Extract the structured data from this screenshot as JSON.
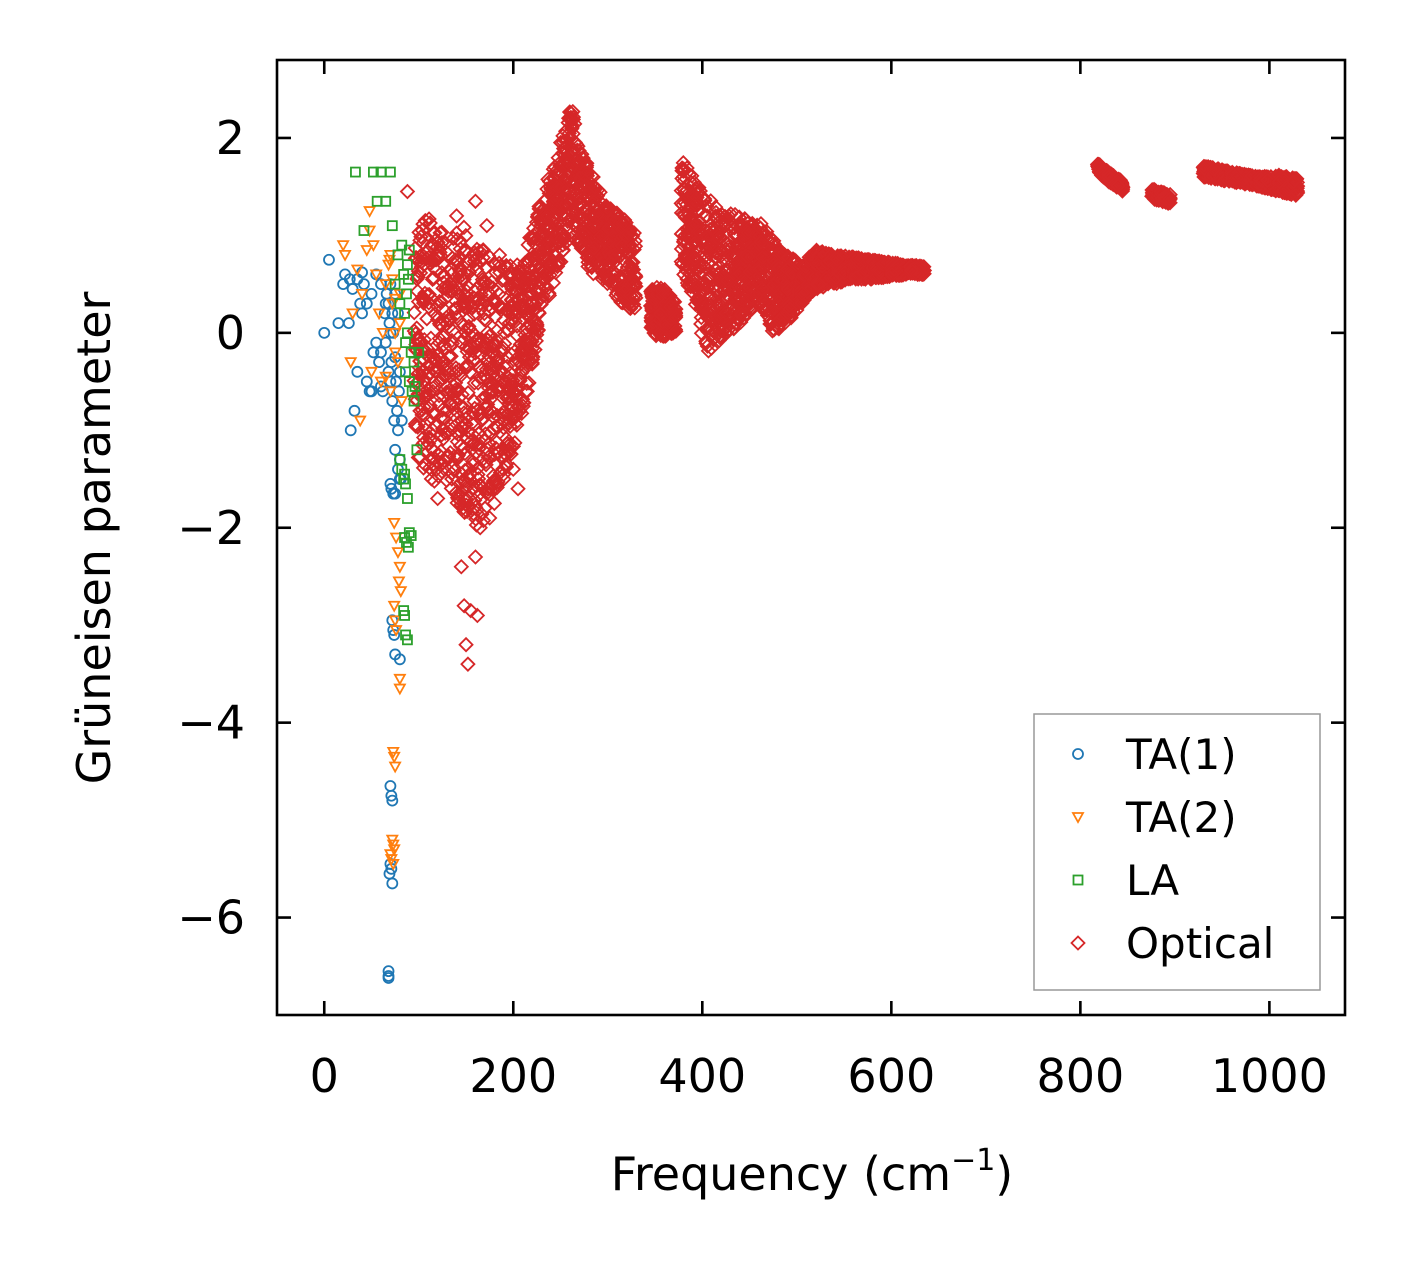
{
  "chart_data": {
    "type": "scatter",
    "title": "",
    "xlabel": "Frequency (cm",
    "xlabel_sup": "−1",
    "xlabel_close": ")",
    "ylabel": "Grüneisen parameter",
    "xlim": [
      -50,
      1080
    ],
    "ylim": [
      -7,
      2.8
    ],
    "xticks": [
      0,
      200,
      400,
      600,
      800,
      1000
    ],
    "xtick_labels": [
      "0",
      "200",
      "400",
      "600",
      "800",
      "1000"
    ],
    "yticks": [
      2,
      0,
      -2,
      -4,
      -6
    ],
    "ytick_labels": [
      "2",
      "0",
      "−2",
      "−4",
      "−6"
    ],
    "grid": false,
    "legend_position": "lower-right",
    "series": [
      {
        "name": "TA(1)",
        "marker": "circle",
        "color": "#1f77b4",
        "x": [
          0,
          5,
          15,
          20,
          22,
          26,
          28,
          32,
          35,
          38,
          40,
          42,
          45,
          48,
          50,
          52,
          55,
          58,
          60,
          62,
          64,
          65,
          66,
          68,
          68,
          69,
          70,
          70,
          71,
          72,
          72,
          73,
          74,
          75,
          75,
          76,
          77,
          78,
          78,
          79,
          80,
          80,
          81,
          82,
          70,
          71,
          73,
          75,
          78,
          80,
          72,
          73,
          74,
          75,
          80,
          70,
          71,
          72,
          70,
          71,
          72,
          69,
          68,
          68,
          68,
          27,
          30,
          40,
          45,
          55,
          60,
          65,
          70,
          75,
          60,
          50,
          35
        ],
        "y": [
          0.0,
          0.75,
          0.1,
          0.5,
          0.6,
          0.1,
          -1.0,
          -0.8,
          -0.4,
          0.3,
          0.2,
          0.5,
          -0.5,
          -0.6,
          0.4,
          -0.2,
          0.6,
          -0.3,
          0.5,
          -0.6,
          0.2,
          -0.1,
          0.4,
          0.3,
          -0.4,
          0.1,
          -0.5,
          0.5,
          -0.3,
          0.2,
          -0.7,
          0.0,
          -0.9,
          0.4,
          -1.2,
          -0.5,
          -0.8,
          -1.0,
          0.2,
          -0.6,
          -1.3,
          -0.4,
          -1.5,
          -0.9,
          -1.55,
          -1.6,
          -1.65,
          -1.65,
          -1.4,
          -1.5,
          -2.95,
          -3.05,
          -3.1,
          -3.3,
          -3.35,
          -4.65,
          -4.75,
          -4.8,
          -5.45,
          -5.5,
          -5.65,
          -5.55,
          -6.55,
          -6.6,
          -6.62,
          0.55,
          0.45,
          0.62,
          0.3,
          -0.1,
          -0.2,
          0.3,
          0.0,
          -0.25,
          -0.55,
          -0.6,
          0.55
        ]
      },
      {
        "name": "TA(2)",
        "marker": "triangle-down",
        "color": "#ff7f0e",
        "x": [
          20,
          22,
          28,
          30,
          35,
          40,
          45,
          48,
          50,
          55,
          58,
          60,
          62,
          65,
          68,
          70,
          72,
          75,
          78,
          80,
          82,
          74,
          76,
          78,
          80,
          79,
          81,
          74,
          75,
          76,
          80,
          80,
          73,
          74,
          75,
          72,
          73,
          74,
          70,
          71,
          73,
          48,
          52,
          38,
          65,
          70,
          75,
          80
        ],
        "y": [
          0.9,
          0.8,
          -0.3,
          0.2,
          0.65,
          0.4,
          0.85,
          1.05,
          -0.4,
          0.6,
          0.2,
          -0.5,
          0.0,
          0.5,
          0.7,
          -0.6,
          0.3,
          0.0,
          -0.3,
          0.4,
          -0.7,
          -1.95,
          -2.1,
          -2.25,
          -2.4,
          -2.55,
          -2.65,
          -2.8,
          -2.95,
          -3.05,
          -3.55,
          -3.65,
          -4.3,
          -4.35,
          -4.45,
          -5.2,
          -5.25,
          -5.3,
          -5.35,
          -5.4,
          -5.45,
          1.25,
          0.9,
          -0.9,
          -0.45,
          0.8,
          -0.2,
          0.1
        ],
        "extra_x": [
          69,
          72,
          75
        ],
        "extra_y": [
          0.75,
          0.55,
          0.35
        ]
      },
      {
        "name": "LA",
        "marker": "square",
        "color": "#2ca02c",
        "x": [
          33,
          42,
          52,
          56,
          60,
          65,
          70,
          72,
          75,
          78,
          80,
          82,
          84,
          85,
          86,
          88,
          90,
          92,
          93,
          95,
          95,
          96,
          98,
          100,
          80,
          82,
          84,
          85,
          86,
          88,
          90,
          85,
          87,
          89,
          92,
          84,
          85,
          86,
          88,
          86,
          87
        ],
        "y": [
          1.65,
          1.05,
          1.65,
          1.35,
          1.65,
          1.35,
          1.65,
          1.1,
          0.5,
          0.8,
          0.3,
          0.9,
          0.6,
          0.2,
          -0.4,
          0.0,
          -0.5,
          -0.2,
          -0.6,
          -0.7,
          -0.3,
          -0.55,
          -1.2,
          -0.2,
          -1.3,
          -1.4,
          -1.5,
          -1.45,
          -1.55,
          -1.7,
          -2.05,
          -2.1,
          -2.15,
          -2.2,
          -2.08,
          -2.85,
          -2.9,
          -3.1,
          -3.15,
          -0.1,
          0.4
        ],
        "extra_x": [
          88,
          89,
          90
        ],
        "extra_y": [
          0.7,
          0.55,
          0.85
        ]
      },
      {
        "name": "Optical",
        "marker": "diamond",
        "color": "#d62728",
        "note": "dense cloud of thousands of points; described by per-frequency envelopes (freq, y_min, y_max) plus sparse outliers",
        "envelopes": [
          [
            [
              95,
              -1.2,
              1.0
            ],
            [
              110,
              -1.5,
              1.2
            ],
            [
              130,
              -1.6,
              1.0
            ],
            [
              150,
              -1.9,
              1.1
            ],
            [
              165,
              -2.0,
              0.95
            ],
            [
              180,
              -1.7,
              0.85
            ],
            [
              200,
              -1.2,
              0.7
            ],
            [
              215,
              -0.6,
              0.9
            ],
            [
              230,
              0.2,
              1.4
            ],
            [
              245,
              0.5,
              1.8
            ],
            [
              255,
              0.9,
              2.1
            ],
            [
              262,
              1.2,
              2.35
            ],
            [
              270,
              0.8,
              1.9
            ],
            [
              285,
              0.6,
              1.6
            ],
            [
              300,
              0.5,
              1.3
            ],
            [
              315,
              0.3,
              1.2
            ],
            [
              330,
              0.2,
              1.0
            ]
          ],
          [
            [
              345,
              0.0,
              0.45
            ],
            [
              355,
              -0.05,
              0.5
            ],
            [
              365,
              -0.05,
              0.4
            ],
            [
              372,
              0.0,
              0.3
            ]
          ],
          [
            [
              377,
              0.7,
              1.8
            ],
            [
              390,
              0.3,
              1.6
            ],
            [
              405,
              -0.2,
              1.4
            ],
            [
              420,
              -0.1,
              1.25
            ],
            [
              440,
              0.1,
              1.2
            ],
            [
              460,
              0.3,
              1.15
            ],
            [
              475,
              0.0,
              0.95
            ],
            [
              490,
              0.1,
              0.8
            ],
            [
              505,
              0.3,
              0.7
            ],
            [
              520,
              0.45,
              0.85
            ],
            [
              540,
              0.5,
              0.8
            ],
            [
              560,
              0.55,
              0.78
            ],
            [
              580,
              0.55,
              0.75
            ],
            [
              600,
              0.58,
              0.72
            ],
            [
              620,
              0.6,
              0.7
            ],
            [
              635,
              0.6,
              0.68
            ]
          ],
          [
            [
              818,
              1.65,
              1.75
            ],
            [
              830,
              1.55,
              1.65
            ],
            [
              845,
              1.45,
              1.55
            ]
          ],
          [
            [
              875,
              1.38,
              1.48
            ],
            [
              885,
              1.35,
              1.45
            ],
            [
              895,
              1.32,
              1.42
            ]
          ],
          [
            [
              930,
              1.6,
              1.72
            ],
            [
              960,
              1.55,
              1.65
            ],
            [
              990,
              1.5,
              1.6
            ],
            [
              1010,
              1.45,
              1.62
            ],
            [
              1030,
              1.4,
              1.58
            ]
          ]
        ],
        "outliers_x": [
          88,
          120,
          135,
          145,
          148,
          150,
          152,
          155,
          160,
          162,
          165,
          170,
          175,
          180,
          190,
          200,
          205,
          140,
          160,
          172
        ],
        "outliers_y": [
          1.45,
          -1.7,
          -1.5,
          -2.4,
          -2.8,
          -3.2,
          -3.4,
          -2.85,
          -2.3,
          -2.9,
          -2.0,
          -1.8,
          -1.9,
          -1.75,
          -1.5,
          -1.4,
          -1.6,
          1.2,
          1.35,
          1.1
        ]
      }
    ]
  }
}
